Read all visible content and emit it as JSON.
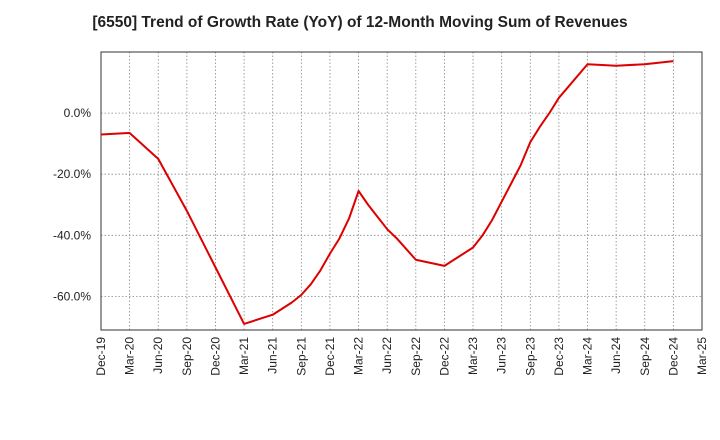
{
  "chart_data": {
    "type": "line",
    "title": "[6550]  Trend of Growth Rate (YoY) of 12-Month Moving Sum of Revenues",
    "xlabel": "",
    "ylabel": "",
    "x_ticks": [
      "Dec-19",
      "Mar-20",
      "Jun-20",
      "Sep-20",
      "Dec-20",
      "Mar-21",
      "Jun-21",
      "Sep-21",
      "Dec-21",
      "Mar-22",
      "Jun-22",
      "Sep-22",
      "Dec-22",
      "Mar-23",
      "Jun-23",
      "Sep-23",
      "Dec-23",
      "Mar-24",
      "Jun-24",
      "Sep-24",
      "Dec-24",
      "Mar-25"
    ],
    "y_ticks": [
      {
        "value": 0,
        "label": "0.0%"
      },
      {
        "value": -20,
        "label": "-20.0%"
      },
      {
        "value": -40,
        "label": "-40.0%"
      },
      {
        "value": -60,
        "label": "-60.0%"
      }
    ],
    "ylim": [
      -71,
      20
    ],
    "grid": true,
    "grid_style": "dotted",
    "series": [
      {
        "color": "#dd0000",
        "points": [
          {
            "x": "2019-12",
            "y": -7.0
          },
          {
            "x": "2020-03",
            "y": -6.5
          },
          {
            "x": "2020-06",
            "y": -15.0
          },
          {
            "x": "2020-09",
            "y": -32.0
          },
          {
            "x": "2020-12",
            "y": -50.5
          },
          {
            "x": "2021-03",
            "y": -69.0
          },
          {
            "x": "2021-06",
            "y": -66.0
          },
          {
            "x": "2021-07",
            "y": -64.0
          },
          {
            "x": "2021-08",
            "y": -62.0
          },
          {
            "x": "2021-09",
            "y": -59.5
          },
          {
            "x": "2021-10",
            "y": -56.0
          },
          {
            "x": "2021-11",
            "y": -51.5
          },
          {
            "x": "2021-12",
            "y": -46.0
          },
          {
            "x": "2022-01",
            "y": -41.0
          },
          {
            "x": "2022-02",
            "y": -34.5
          },
          {
            "x": "2022-03",
            "y": -25.5
          },
          {
            "x": "2022-04",
            "y": -30.0
          },
          {
            "x": "2022-05",
            "y": -34.0
          },
          {
            "x": "2022-06",
            "y": -38.0
          },
          {
            "x": "2022-07",
            "y": -41.0
          },
          {
            "x": "2022-08",
            "y": -44.5
          },
          {
            "x": "2022-09",
            "y": -48.0
          },
          {
            "x": "2022-12",
            "y": -50.0
          },
          {
            "x": "2023-03",
            "y": -44.0
          },
          {
            "x": "2023-04",
            "y": -40.0
          },
          {
            "x": "2023-05",
            "y": -35.0
          },
          {
            "x": "2023-06",
            "y": -29.0
          },
          {
            "x": "2023-07",
            "y": -23.0
          },
          {
            "x": "2023-08",
            "y": -17.0
          },
          {
            "x": "2023-09",
            "y": -9.5
          },
          {
            "x": "2023-10",
            "y": -4.5
          },
          {
            "x": "2023-11",
            "y": 0.0
          },
          {
            "x": "2023-12",
            "y": 5.0
          },
          {
            "x": "2024-03",
            "y": 16.0
          },
          {
            "x": "2024-06",
            "y": 15.5
          },
          {
            "x": "2024-09",
            "y": 16.0
          },
          {
            "x": "2024-12",
            "y": 17.0
          }
        ]
      }
    ]
  }
}
